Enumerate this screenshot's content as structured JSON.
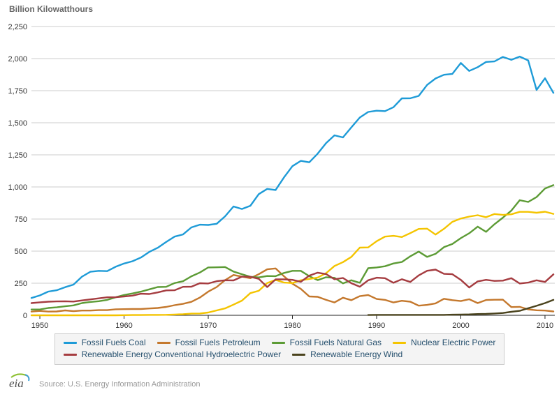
{
  "page": {
    "title": "Billion Kilowatthours"
  },
  "footer": {
    "logo": "eia",
    "source": "Source: U.S. Energy Information Administration"
  },
  "colors": {
    "title_text": "#666666",
    "tick_text": "#333333",
    "gridline": "#cccccc",
    "axis": "#222222",
    "legend_text": "#26506e",
    "legend_bg": "#f4f4f4",
    "legend_border": "#cccccc",
    "source_text": "#999999",
    "logo_text": "#4d4d4d",
    "logo_arc_green": "#8cbf2f",
    "logo_arc_blue": "#3f9fd4"
  },
  "chart_data": {
    "type": "line",
    "title": "Billion Kilowatthours",
    "xlabel": "",
    "ylabel": "Billion Kilowatthours",
    "x_start": 1949,
    "x_end": 2011,
    "ylim": [
      0,
      2250
    ],
    "ytick_interval": 250,
    "ytick_labels": [
      "0",
      "250",
      "500",
      "750",
      "1,000",
      "1,250",
      "1,500",
      "1,750",
      "2,000",
      "2,250"
    ],
    "xticks": [
      1950,
      1960,
      1970,
      1980,
      1990,
      2000,
      2010
    ],
    "grid": "horizontal",
    "legend_position": "bottom",
    "legend_rows": [
      [
        0,
        1,
        2,
        3
      ],
      [
        4,
        5
      ]
    ],
    "series": [
      {
        "name": "Fossil Fuels Coal",
        "color": "#1e9bd7",
        "start_year": 1949,
        "values": [
          135,
          155,
          185,
          195,
          219,
          239,
          301,
          339,
          346,
          344,
          378,
          403,
          421,
          450,
          494,
          526,
          571,
          613,
          630,
          685,
          706,
          704,
          713,
          771,
          848,
          828,
          853,
          944,
          985,
          976,
          1075,
          1162,
          1203,
          1192,
          1259,
          1342,
          1402,
          1386,
          1464,
          1541,
          1584,
          1594,
          1591,
          1621,
          1690,
          1691,
          1709,
          1795,
          1845,
          1874,
          1881,
          1966,
          1904,
          1933,
          1974,
          1978,
          2013,
          1991,
          2016,
          1986,
          1756,
          1847,
          1733
        ]
      },
      {
        "name": "Fossil Fuels Petroleum",
        "color": "#c4782d",
        "start_year": 1949,
        "values": [
          29,
          34,
          29,
          30,
          38,
          32,
          37,
          37,
          40,
          40,
          47,
          48,
          49,
          49,
          53,
          57,
          65,
          79,
          89,
          105,
          138,
          184,
          220,
          274,
          314,
          301,
          289,
          320,
          358,
          365,
          304,
          246,
          206,
          147,
          144,
          120,
          100,
          137,
          118,
          149,
          158,
          127,
          120,
          100,
          113,
          106,
          75,
          81,
          93,
          129,
          118,
          111,
          125,
          95,
          119,
          121,
          122,
          64,
          66,
          46,
          39,
          37,
          30
        ]
      },
      {
        "name": "Fossil Fuels Natural Gas",
        "color": "#5c9b35",
        "start_year": 1949,
        "values": [
          45,
          45,
          57,
          62,
          70,
          77,
          95,
          104,
          110,
          120,
          140,
          158,
          170,
          184,
          202,
          220,
          222,
          251,
          265,
          304,
          333,
          373,
          374,
          376,
          341,
          320,
          300,
          295,
          306,
          305,
          330,
          346,
          346,
          305,
          274,
          297,
          292,
          249,
          273,
          253,
          367,
          373,
          382,
          404,
          415,
          460,
          496,
          455,
          479,
          531,
          556,
          601,
          639,
          691,
          650,
          710,
          761,
          816,
          897,
          883,
          921,
          988,
          1014
        ]
      },
      {
        "name": "Nuclear Electric Power",
        "color": "#f4c400",
        "start_year": 1949,
        "values": [
          0,
          0,
          0,
          0,
          0,
          0,
          0,
          0,
          0,
          0,
          0,
          1,
          2,
          2,
          3,
          3,
          4,
          6,
          8,
          13,
          14,
          22,
          38,
          54,
          83,
          114,
          173,
          191,
          251,
          276,
          255,
          251,
          273,
          283,
          294,
          328,
          384,
          414,
          455,
          527,
          529,
          577,
          613,
          619,
          610,
          640,
          673,
          675,
          629,
          674,
          728,
          754,
          769,
          780,
          764,
          789,
          782,
          787,
          806,
          806,
          799,
          807,
          790
        ]
      },
      {
        "name": "Renewable Energy Conventional Hydroelectric Power",
        "color": "#a53c40",
        "start_year": 1949,
        "values": [
          95,
          101,
          106,
          108,
          109,
          107,
          116,
          124,
          132,
          140,
          141,
          146,
          153,
          168,
          166,
          178,
          194,
          195,
          222,
          223,
          250,
          248,
          266,
          273,
          272,
          301,
          300,
          284,
          220,
          280,
          280,
          276,
          261,
          309,
          332,
          321,
          281,
          291,
          250,
          223,
          273,
          293,
          289,
          253,
          281,
          260,
          311,
          347,
          356,
          323,
          320,
          276,
          217,
          264,
          276,
          268,
          270,
          289,
          248,
          255,
          273,
          260,
          319
        ]
      },
      {
        "name": "Renewable Energy Wind",
        "color": "#4a431d",
        "start_year": 1989,
        "values": [
          2,
          3,
          3,
          3,
          3,
          3,
          3,
          3,
          3,
          3,
          5,
          6,
          7,
          10,
          11,
          14,
          18,
          27,
          35,
          55,
          74,
          95,
          120
        ]
      }
    ]
  }
}
